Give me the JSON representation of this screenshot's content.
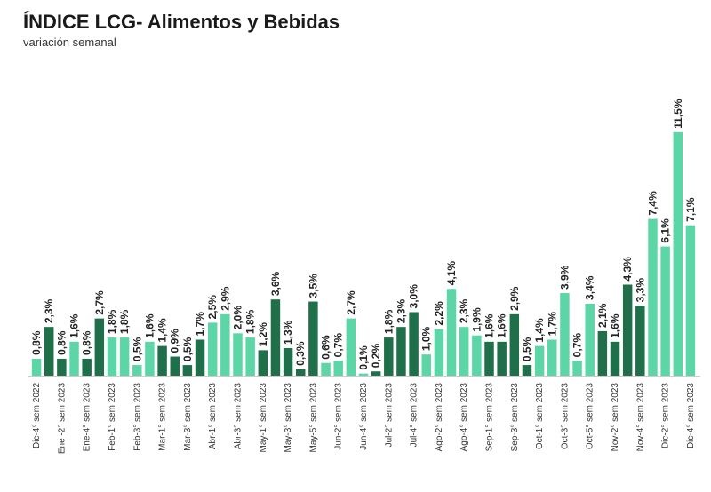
{
  "title": "ÍNDICE LCG- Alimentos y Bebidas",
  "subtitle": "variación semanal",
  "colors": {
    "light": "#5cd6a6",
    "dark": "#1f6f4a"
  },
  "chart_data": {
    "type": "bar",
    "title": "ÍNDICE LCG- Alimentos y Bebidas",
    "subtitle": "variación semanal",
    "ylim": [
      0,
      12.5
    ],
    "grid": false,
    "legend": "none",
    "categories": [
      "Dic-4° sem 2022",
      "",
      "Ene -2° sem 2023",
      "",
      "Ene-4° sem 2023",
      "",
      "Feb-1° sem 2023",
      "",
      "Feb-3° sem 2023",
      "",
      "Mar-1° sem 2023",
      "",
      "Mar-3° sem 2023",
      "",
      "Abr-1° sem 2023",
      "",
      "Abr-3° sem 2023",
      "",
      "May-1° sem 2023",
      "",
      "May-3° sem 2023",
      "",
      "May-5° sem 2023",
      "",
      "Jun-2° sem 2023",
      "",
      "Jun-4° sem 2023",
      "",
      "Jul-2° sem 2023",
      "",
      "Jul-4° sem 2023",
      "",
      "Ago-2° sem 2023",
      "",
      "Ago-4° sem 2023",
      "",
      "Sep-1° sem 2023",
      "",
      "Sep-3° sem 2023",
      "",
      "Oct-1° sem 2023",
      "",
      "Oct-3° sem 2023",
      "",
      "Oct-5° sem 2023",
      "",
      "Nov-2° sem 2023",
      "",
      "Nov-4° sem 2023",
      "",
      "Dic-2° sem 2023",
      "",
      "Dic-4° sem 2023"
    ],
    "values": [
      0.8,
      2.3,
      0.8,
      1.6,
      0.8,
      2.7,
      1.8,
      1.8,
      0.5,
      1.6,
      1.4,
      0.9,
      0.5,
      1.7,
      2.5,
      2.9,
      2.0,
      1.8,
      1.2,
      3.6,
      1.3,
      0.3,
      3.5,
      0.6,
      0.7,
      2.7,
      0.1,
      0.2,
      1.8,
      2.3,
      3.0,
      1.0,
      2.2,
      4.1,
      2.3,
      1.9,
      1.6,
      1.6,
      2.9,
      0.5,
      1.4,
      1.7,
      3.9,
      0.7,
      3.4,
      2.1,
      1.6,
      4.3,
      3.3,
      7.4,
      6.1,
      11.5,
      7.1
    ],
    "value_labels": [
      "0,8%",
      "2,3%",
      "0,8%",
      "1,6%",
      "0,8%",
      "2,7%",
      "1,8%",
      "1,8%",
      "0,5%",
      "1,6%",
      "1,4%",
      "0,9%",
      "0,5%",
      "1,7%",
      "2,5%",
      "2,9%",
      "2,0%",
      "1,8%",
      "1,2%",
      "3,6%",
      "1,3%",
      "0,3%",
      "3,5%",
      "0,6%",
      "0,7%",
      "2,7%",
      "0,1%",
      "0,2%",
      "1,8%",
      "2,3%",
      "3,0%",
      "1,0%",
      "2,2%",
      "4,1%",
      "2,3%",
      "1,9%",
      "1,6%",
      "1,6%",
      "2,9%",
      "0,5%",
      "1,4%",
      "1,7%",
      "3,9%",
      "0,7%",
      "3,4%",
      "2,1%",
      "1,6%",
      "4,3%",
      "3,3%",
      "7,4%",
      "6,1%",
      "11,5%",
      "7,1%"
    ],
    "bar_colors": [
      "light",
      "dark",
      "dark",
      "light",
      "dark",
      "dark",
      "light",
      "light",
      "light",
      "light",
      "dark",
      "dark",
      "dark",
      "dark",
      "light",
      "light",
      "light",
      "light",
      "dark",
      "dark",
      "dark",
      "dark",
      "dark",
      "light",
      "light",
      "light",
      "light",
      "dark",
      "dark",
      "dark",
      "dark",
      "light",
      "light",
      "light",
      "light",
      "light",
      "dark",
      "dark",
      "dark",
      "dark",
      "light",
      "light",
      "light",
      "light",
      "light",
      "dark",
      "dark",
      "dark",
      "dark",
      "light",
      "light",
      "light",
      "light"
    ]
  }
}
